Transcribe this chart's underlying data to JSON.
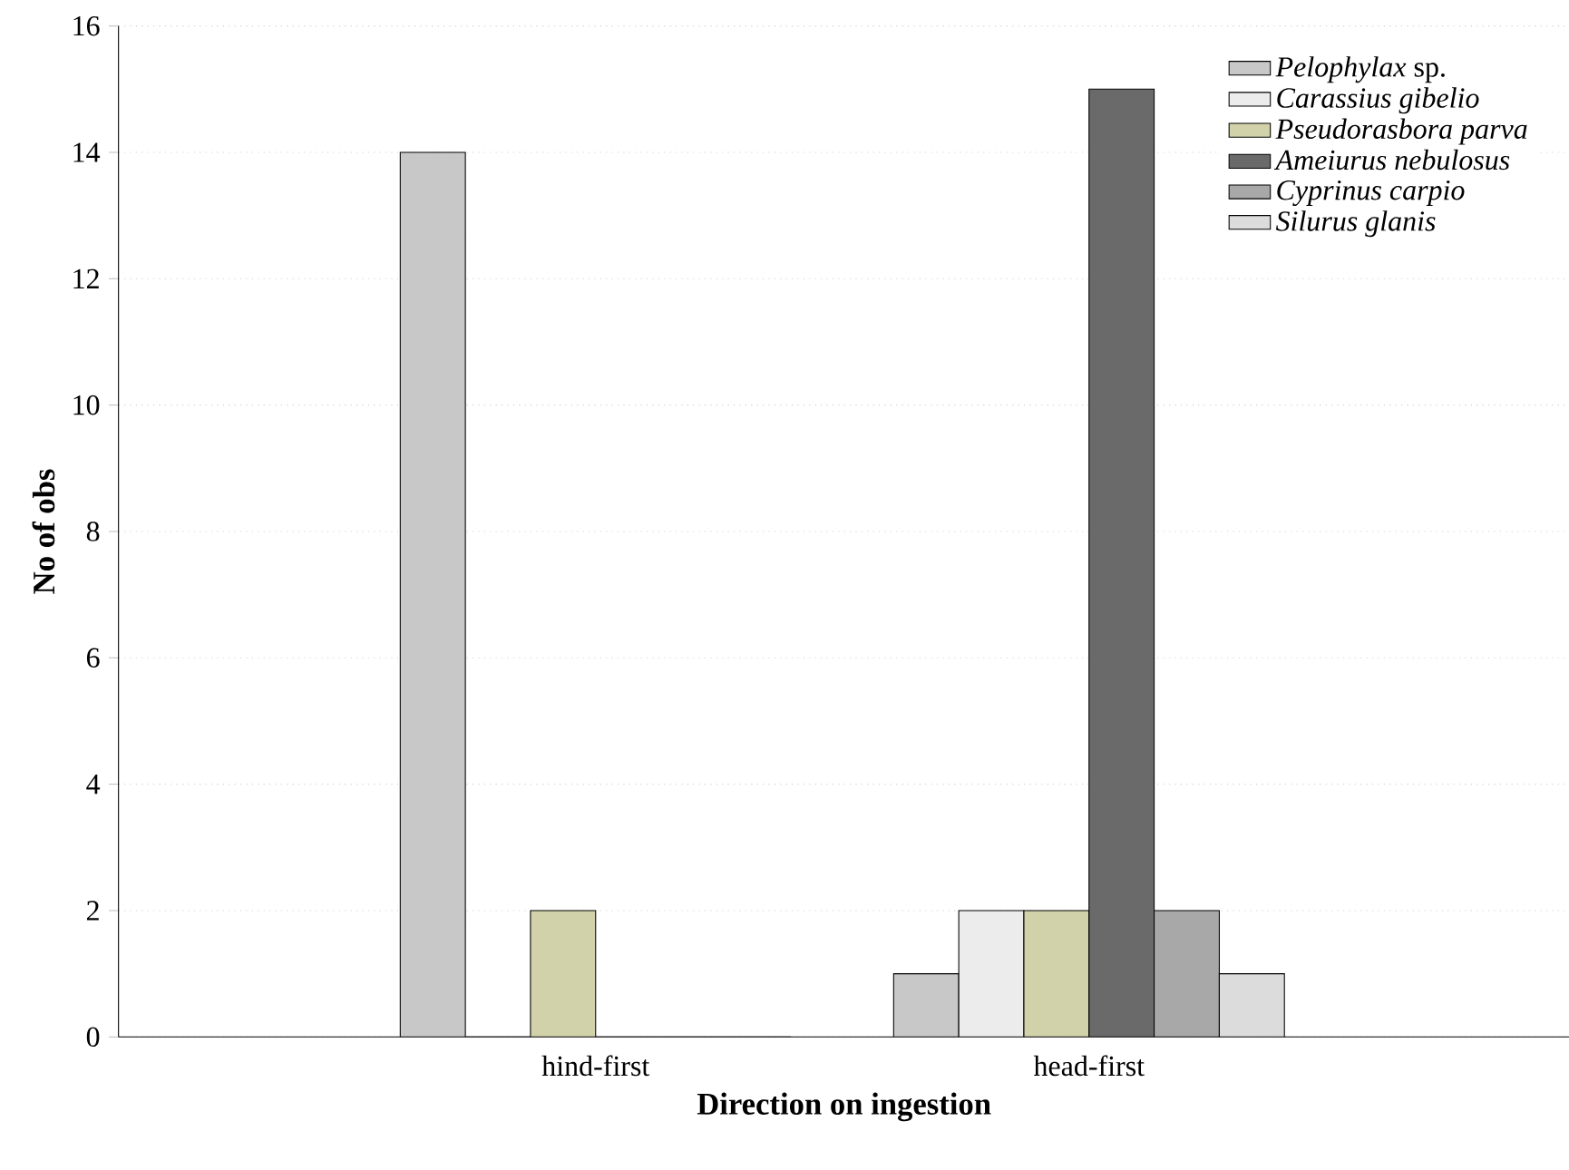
{
  "chart_data": {
    "type": "bar",
    "xlabel": "Direction on ingestion",
    "ylabel": "No of obs",
    "categories": [
      "hind-first",
      "head-first"
    ],
    "series": [
      {
        "name": "*Pelophylax* sp.",
        "color": "#c8c8c8",
        "values": [
          14,
          1
        ]
      },
      {
        "name": "*Carassius gibelio*",
        "color": "#ececec",
        "values": [
          0,
          2
        ]
      },
      {
        "name": "*Pseudorasbora parva*",
        "color": "#d2d2aa",
        "values": [
          2,
          2
        ]
      },
      {
        "name": "*Ameiurus nebulosus*",
        "color": "#6a6a6a",
        "values": [
          0,
          15
        ]
      },
      {
        "name": "*Cyprinus carpio*",
        "color": "#a8a8a8",
        "values": [
          0,
          2
        ]
      },
      {
        "name": "*Silurus glanis*",
        "color": "#dcdcdc",
        "values": [
          0,
          1
        ]
      }
    ],
    "ylim": [
      0,
      16
    ],
    "yticks": [
      0,
      2,
      4,
      6,
      8,
      10,
      12,
      14,
      16
    ],
    "grid": "y",
    "legend": "top right"
  }
}
